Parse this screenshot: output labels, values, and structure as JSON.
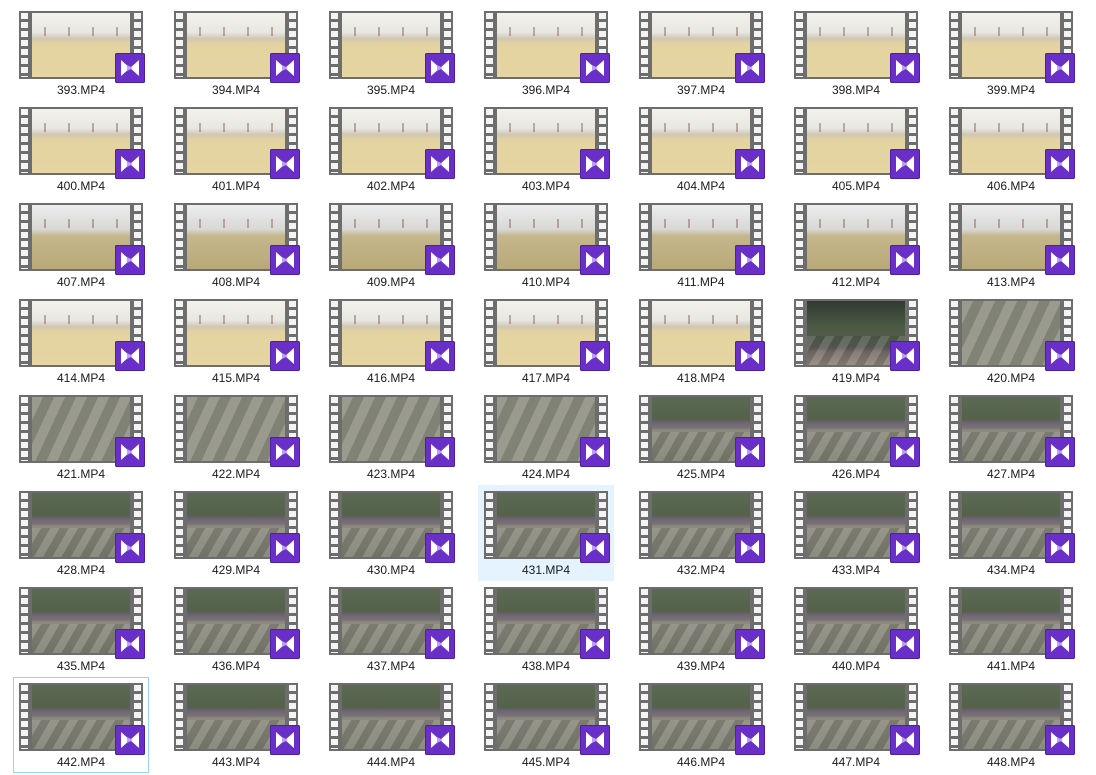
{
  "files": [
    {
      "name": "393.MP4",
      "scene": "a"
    },
    {
      "name": "394.MP4",
      "scene": "a"
    },
    {
      "name": "395.MP4",
      "scene": "a"
    },
    {
      "name": "396.MP4",
      "scene": "a"
    },
    {
      "name": "397.MP4",
      "scene": "a"
    },
    {
      "name": "398.MP4",
      "scene": "a"
    },
    {
      "name": "399.MP4",
      "scene": "a"
    },
    {
      "name": "400.MP4",
      "scene": "a"
    },
    {
      "name": "401.MP4",
      "scene": "a"
    },
    {
      "name": "402.MP4",
      "scene": "a"
    },
    {
      "name": "403.MP4",
      "scene": "a"
    },
    {
      "name": "404.MP4",
      "scene": "a"
    },
    {
      "name": "405.MP4",
      "scene": "a"
    },
    {
      "name": "406.MP4",
      "scene": "a"
    },
    {
      "name": "407.MP4",
      "scene": "b"
    },
    {
      "name": "408.MP4",
      "scene": "b"
    },
    {
      "name": "409.MP4",
      "scene": "b"
    },
    {
      "name": "410.MP4",
      "scene": "b"
    },
    {
      "name": "411.MP4",
      "scene": "b"
    },
    {
      "name": "412.MP4",
      "scene": "b"
    },
    {
      "name": "413.MP4",
      "scene": "b"
    },
    {
      "name": "414.MP4",
      "scene": "a"
    },
    {
      "name": "415.MP4",
      "scene": "a"
    },
    {
      "name": "416.MP4",
      "scene": "a"
    },
    {
      "name": "417.MP4",
      "scene": "a"
    },
    {
      "name": "418.MP4",
      "scene": "a"
    },
    {
      "name": "419.MP4",
      "scene": "c"
    },
    {
      "name": "420.MP4",
      "scene": "d"
    },
    {
      "name": "421.MP4",
      "scene": "d"
    },
    {
      "name": "422.MP4",
      "scene": "d"
    },
    {
      "name": "423.MP4",
      "scene": "d"
    },
    {
      "name": "424.MP4",
      "scene": "d"
    },
    {
      "name": "425.MP4",
      "scene": "e"
    },
    {
      "name": "426.MP4",
      "scene": "e"
    },
    {
      "name": "427.MP4",
      "scene": "e"
    },
    {
      "name": "428.MP4",
      "scene": "e"
    },
    {
      "name": "429.MP4",
      "scene": "e"
    },
    {
      "name": "430.MP4",
      "scene": "e"
    },
    {
      "name": "431.MP4",
      "scene": "e",
      "state": "hover"
    },
    {
      "name": "432.MP4",
      "scene": "e"
    },
    {
      "name": "433.MP4",
      "scene": "e"
    },
    {
      "name": "434.MP4",
      "scene": "e"
    },
    {
      "name": "435.MP4",
      "scene": "e"
    },
    {
      "name": "436.MP4",
      "scene": "e"
    },
    {
      "name": "437.MP4",
      "scene": "e"
    },
    {
      "name": "438.MP4",
      "scene": "e"
    },
    {
      "name": "439.MP4",
      "scene": "e"
    },
    {
      "name": "440.MP4",
      "scene": "e"
    },
    {
      "name": "441.MP4",
      "scene": "e"
    },
    {
      "name": "442.MP4",
      "scene": "e",
      "state": "selected"
    },
    {
      "name": "443.MP4",
      "scene": "e"
    },
    {
      "name": "444.MP4",
      "scene": "e"
    },
    {
      "name": "445.MP4",
      "scene": "e"
    },
    {
      "name": "446.MP4",
      "scene": "e"
    },
    {
      "name": "447.MP4",
      "scene": "e"
    },
    {
      "name": "448.MP4",
      "scene": "e"
    }
  ],
  "icons": {
    "badge": "video-player-icon",
    "thumbnail": "video-filmstrip-icon"
  },
  "colors": {
    "badge": "#6a2fc9",
    "hover": "#e5f3ff",
    "selected_border": "#99d1ff"
  }
}
